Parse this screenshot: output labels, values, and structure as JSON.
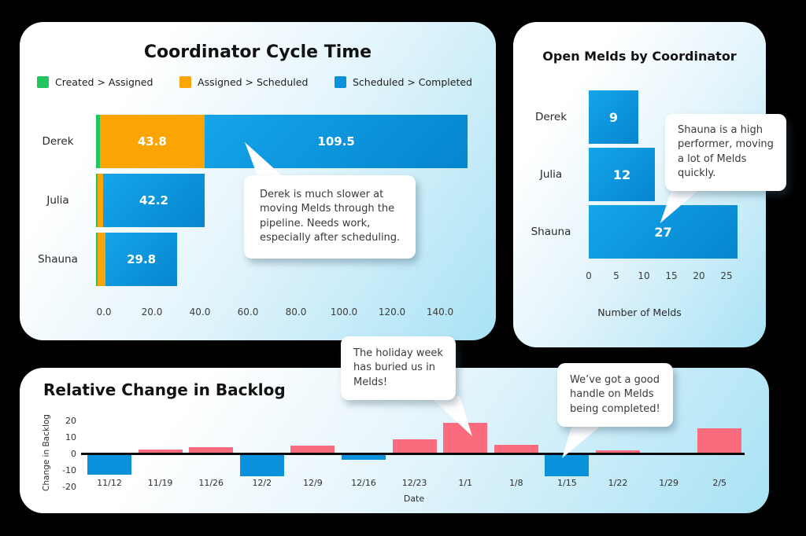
{
  "colors": {
    "green": "#22C55E",
    "orange": "#FBA504",
    "blue": "#0992DB",
    "pink": "#F96B7D",
    "page_background": "#000000",
    "card_gradient_start": "#FFFFFF",
    "card_gradient_end": "#A9E2F5"
  },
  "chart_data": [
    {
      "id": "coordinator-cycle-time",
      "type": "bar",
      "orientation": "horizontal",
      "stacked": true,
      "title": "Coordinator Cycle Time",
      "categories": [
        "Derek",
        "Julia",
        "Shauna"
      ],
      "series": [
        {
          "name": "Created > Assigned",
          "color": "#22C55E",
          "values": [
            1.5,
            0.5,
            0.5
          ]
        },
        {
          "name": "Assigned > Scheduled",
          "color": "#FBA504",
          "values": [
            43.8,
            2.5,
            3.5
          ]
        },
        {
          "name": "Scheduled > Completed",
          "color": "#0992DB",
          "gradient": [
            "#14A5E8",
            "#0685CE"
          ],
          "values": [
            109.5,
            42.2,
            29.8
          ]
        }
      ],
      "x_ticks": [
        "0.0",
        "20.0",
        "40.0",
        "60.0",
        "80.0",
        "100.0",
        "120.0",
        "140.0"
      ],
      "xlim": [
        0,
        140
      ],
      "legend_position": "top",
      "grid": false,
      "callout": {
        "text": "Derek is much slower at\nmoving Melds through the\npipeline. Needs work,\nespecially after scheduling."
      }
    },
    {
      "id": "open-melds-by-coordinator",
      "type": "bar",
      "orientation": "horizontal",
      "title": "Open Melds by Coordinator",
      "categories": [
        "Derek",
        "Julia",
        "Shauna"
      ],
      "values": [
        9,
        12,
        27
      ],
      "bar_color": "#0992DB",
      "bar_gradient": [
        "#14A5E8",
        "#0685CE"
      ],
      "x_ticks": [
        0,
        5,
        10,
        15,
        20,
        25
      ],
      "xlim": [
        0,
        27
      ],
      "xlabel": "Number of Melds",
      "grid": false,
      "callout": {
        "text": "Shauna is a high\nperformer, moving\na lot of Melds\nquickly."
      }
    },
    {
      "id": "relative-change-in-backlog",
      "type": "bar",
      "orientation": "vertical",
      "title": "Relative Change in Backlog",
      "categories": [
        "11/12",
        "11/19",
        "11/26",
        "12/2",
        "12/9",
        "12/16",
        "12/23",
        "1/1",
        "1/8",
        "1/15",
        "1/22",
        "1/29",
        "2/5"
      ],
      "values": [
        -12,
        2,
        3.5,
        -13,
        4.5,
        -3,
        8,
        18,
        5,
        -13,
        1.5,
        0,
        15
      ],
      "positive_color": "#F96B7D",
      "negative_color": "#0992DB",
      "y_ticks": [
        20,
        10,
        0,
        -10,
        -20
      ],
      "ylim": [
        -20,
        20
      ],
      "ylabel": "Change in Backlog",
      "xlabel": "Date",
      "grid": false,
      "callouts": [
        {
          "text": "The holiday week\nhas buried us in\nMelds!",
          "target": "1/1"
        },
        {
          "text": "We’ve got a good\nhandle on Melds\nbeing completed!",
          "target": "1/15"
        }
      ]
    }
  ]
}
